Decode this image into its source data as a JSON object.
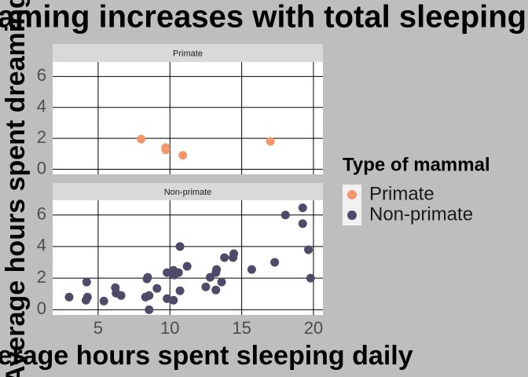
{
  "chart_data": {
    "type": "scatter",
    "title": "Dreaming increases with total sleeping",
    "x_label": "Average hours spent sleeping daily",
    "y_label": "Average hours spent dreaming",
    "legend_title": "Type of mammal",
    "panels": [
      "Primate",
      "Non-primate"
    ],
    "xlim": [
      1.83,
      20.66
    ],
    "xticks": [
      5,
      10,
      15,
      20
    ],
    "ylim": [
      -0.33,
      6.93
    ],
    "yticks": [
      0,
      2,
      4,
      6
    ],
    "grid": true,
    "series": [
      {
        "name": "Primate",
        "color": "#f4976c",
        "x": [
          8.0,
          9.7,
          9.7,
          10.9,
          17.0
        ],
        "y": [
          1.95,
          1.4,
          1.25,
          0.9,
          1.8
        ]
      },
      {
        "name": "Non-primate",
        "color": "#4f4a6a",
        "x": [
          2.98,
          4.15,
          4.26,
          4.2,
          5.4,
          6.2,
          6.25,
          6.6,
          8.3,
          8.4,
          8.45,
          8.55,
          8.55,
          9.1,
          9.8,
          9.8,
          10.25,
          10.25,
          10.3,
          10.6,
          10.7,
          10.7,
          11.2,
          12.5,
          12.8,
          13.2,
          13.25,
          13.2,
          13.6,
          13.8,
          14.4,
          14.45,
          15.7,
          17.3,
          18.05,
          19.25,
          19.25,
          19.65,
          19.8
        ],
        "y": [
          0.8,
          0.6,
          0.8,
          1.75,
          0.55,
          1.4,
          1.05,
          0.9,
          0.8,
          1.95,
          2.05,
          0.9,
          0.0,
          1.35,
          2.35,
          0.7,
          0.6,
          2.5,
          2.2,
          2.35,
          1.2,
          4.0,
          2.75,
          1.45,
          2.05,
          2.35,
          2.55,
          1.25,
          1.75,
          3.3,
          3.3,
          3.55,
          2.55,
          3.0,
          6.0,
          6.45,
          5.45,
          3.8,
          2.0
        ]
      }
    ]
  }
}
